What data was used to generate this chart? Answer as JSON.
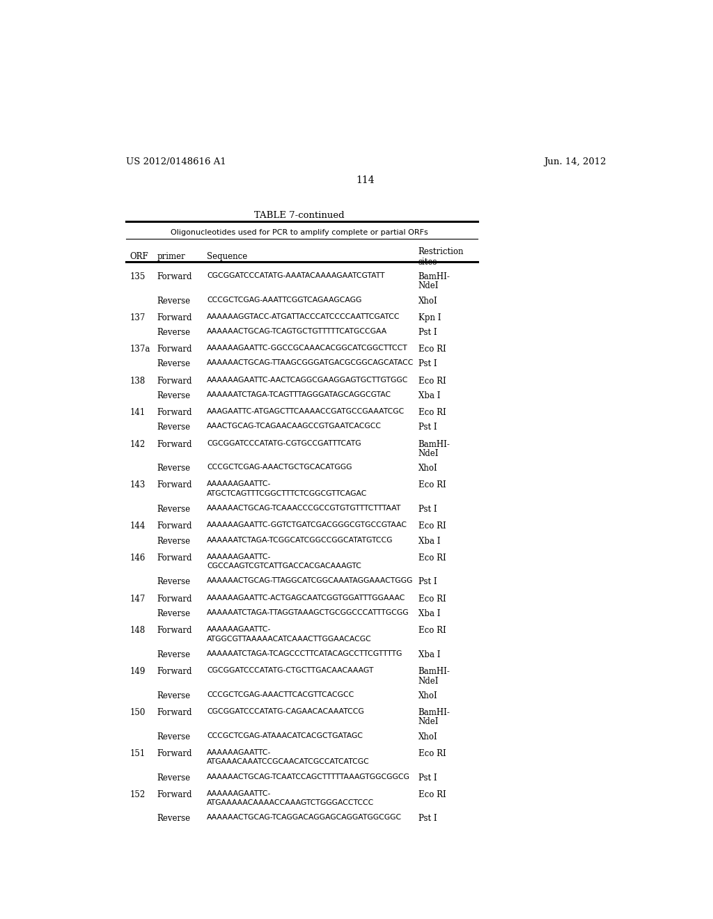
{
  "header_left": "US 2012/0148616 A1",
  "header_right": "Jun. 14, 2012",
  "page_number": "114",
  "table_title": "TABLE 7-continued",
  "table_subtitle": "Oligonucleotides used for PCR to amplify complete or partial ORFs",
  "rows": [
    {
      "orf": "135",
      "primer": "Forward",
      "seq1": "CGCGGATCCCATATG-AAATACAAAAGAATCGTATT",
      "seq2": "",
      "restriction": "BamHI-\nNdeI"
    },
    {
      "orf": "",
      "primer": "Reverse",
      "seq1": "CCCGCTCGAG-AAATTCGGTCAGAAGCAGG",
      "seq2": "",
      "restriction": "XhoI"
    },
    {
      "orf": "137",
      "primer": "Forward",
      "seq1": "AAAAAAGGTACC-ATGATTACCCATCCCCAATTCGATCC",
      "seq2": "",
      "restriction": "Kpn I"
    },
    {
      "orf": "",
      "primer": "Reverse",
      "seq1": "AAAAAACTGCAG-TCAGTGCTGTTTTTCATGCCGAA",
      "seq2": "",
      "restriction": "Pst I"
    },
    {
      "orf": "137a",
      "primer": "Forward",
      "seq1": "AAAAAAGAATTC-GGCCGCAAACACGGCATCGGCTTCCT",
      "seq2": "",
      "restriction": "Eco RI"
    },
    {
      "orf": "",
      "primer": "Reverse",
      "seq1": "AAAAAACTGCAG-TTAAGCGGGATGACGCGGCAGCATACC",
      "seq2": "",
      "restriction": "Pst I"
    },
    {
      "orf": "138",
      "primer": "Forward",
      "seq1": "AAAAAAGAATTC-AACTCAGGCGAAGGAGTGCTTGTGGC",
      "seq2": "",
      "restriction": "Eco RI"
    },
    {
      "orf": "",
      "primer": "Reverse",
      "seq1": "AAAAAATCTAGA-TCAGTTTAGGGATAGCAGGCGTAC",
      "seq2": "",
      "restriction": "Xba I"
    },
    {
      "orf": "141",
      "primer": "Forward",
      "seq1": "AAAGAATTC-ATGAGCTTCAAAACCGATGCCGAAATCGC",
      "seq2": "",
      "restriction": "Eco RI"
    },
    {
      "orf": "",
      "primer": "Reverse",
      "seq1": "AAACTGCAG-TCAGAACAAGCCGTGAATCACGCC",
      "seq2": "",
      "restriction": "Pst I"
    },
    {
      "orf": "142",
      "primer": "Forward",
      "seq1": "CGCGGATCCCATATG-CGTGCCGATTTCATG",
      "seq2": "",
      "restriction": "BamHI-\nNdeI"
    },
    {
      "orf": "",
      "primer": "Reverse",
      "seq1": "CCCGCTCGAG-AAACTGCTGCACATGGG",
      "seq2": "",
      "restriction": "XhoI"
    },
    {
      "orf": "143",
      "primer": "Forward",
      "seq1": "AAAAAAGAATTC-",
      "seq2": "ATGCTCAGTTTCGGCTTTCTCGGCGTTCAGAC",
      "restriction": "Eco RI"
    },
    {
      "orf": "",
      "primer": "Reverse",
      "seq1": "AAAAAACTGCAG-TCAAACCCGCCGTGTGTTTCTTTAAT",
      "seq2": "",
      "restriction": "Pst I"
    },
    {
      "orf": "144",
      "primer": "Forward",
      "seq1": "AAAAAAGAATTC-GGTCTGATCGACGGGCGTGCCGTAAC",
      "seq2": "",
      "restriction": "Eco RI"
    },
    {
      "orf": "",
      "primer": "Reverse",
      "seq1": "AAAAAATCTAGA-TCGGCATCGGCCGGCATATGTCCG",
      "seq2": "",
      "restriction": "Xba I"
    },
    {
      "orf": "146",
      "primer": "Forward",
      "seq1": "AAAAAAGAATTC-",
      "seq2": "CGCCAAGTCGTCATTGACCACGACAAAGTC",
      "restriction": "Eco RI"
    },
    {
      "orf": "",
      "primer": "Reverse",
      "seq1": "AAAAAACTGCAG-TTAGGCATCGGCAAATAGGAAACTGGG",
      "seq2": "",
      "restriction": "Pst I"
    },
    {
      "orf": "147",
      "primer": "Forward",
      "seq1": "AAAAAAGAATTC-ACTGAGCAATCGGTGGATTTGGAAAC",
      "seq2": "",
      "restriction": "Eco RI"
    },
    {
      "orf": "",
      "primer": "Reverse",
      "seq1": "AAAAAATCTAGA-TTAGGTAAAGCTGCGGCCCATTTGCGG",
      "seq2": "",
      "restriction": "Xba I"
    },
    {
      "orf": "148",
      "primer": "Forward",
      "seq1": "AAAAAAGAATTC-",
      "seq2": "ATGGCGTTAAAAACATCAAACTTGGAACACGC",
      "restriction": "Eco RI"
    },
    {
      "orf": "",
      "primer": "Reverse",
      "seq1": "AAAAAATCTAGA-TCAGCCCTTCATACAGCCTTCGTTTTG",
      "seq2": "",
      "restriction": "Xba I"
    },
    {
      "orf": "149",
      "primer": "Forward",
      "seq1": "CGCGGATCCCATATG-CTGCTTGACAACAAAGT",
      "seq2": "",
      "restriction": "BamHI-\nNdeI"
    },
    {
      "orf": "",
      "primer": "Reverse",
      "seq1": "CCCGCTCGAG-AAACTTCACGTTCACGCC",
      "seq2": "",
      "restriction": "XhoI"
    },
    {
      "orf": "150",
      "primer": "Forward",
      "seq1": "CGCGGATCCCATATG-CAGAACACAAATCCG",
      "seq2": "",
      "restriction": "BamHI-\nNdeI"
    },
    {
      "orf": "",
      "primer": "Reverse",
      "seq1": "CCCGCTCGAG-ATAAACATCACGCTGATAGC",
      "seq2": "",
      "restriction": "XhoI"
    },
    {
      "orf": "151",
      "primer": "Forward",
      "seq1": "AAAAAAGAATTC-",
      "seq2": "ATGAAACAAATCCGCAACATCGCCATCATCGC",
      "restriction": "Eco RI"
    },
    {
      "orf": "",
      "primer": "Reverse",
      "seq1": "AAAAAACTGCAG-TCAATCCAGCTTTTTAAAGTGGCGGCG",
      "seq2": "",
      "restriction": "Pst I"
    },
    {
      "orf": "152",
      "primer": "Forward",
      "seq1": "AAAAAAGAATTC-",
      "seq2": "ATGAAAAACAAAACCAAAGTCTGGGACCTCCC",
      "restriction": "Eco RI"
    },
    {
      "orf": "",
      "primer": "Reverse",
      "seq1": "AAAAAACTGCAG-TCAGGACAGGAGCAGGATGGCGGC",
      "seq2": "",
      "restriction": "Pst I"
    }
  ]
}
